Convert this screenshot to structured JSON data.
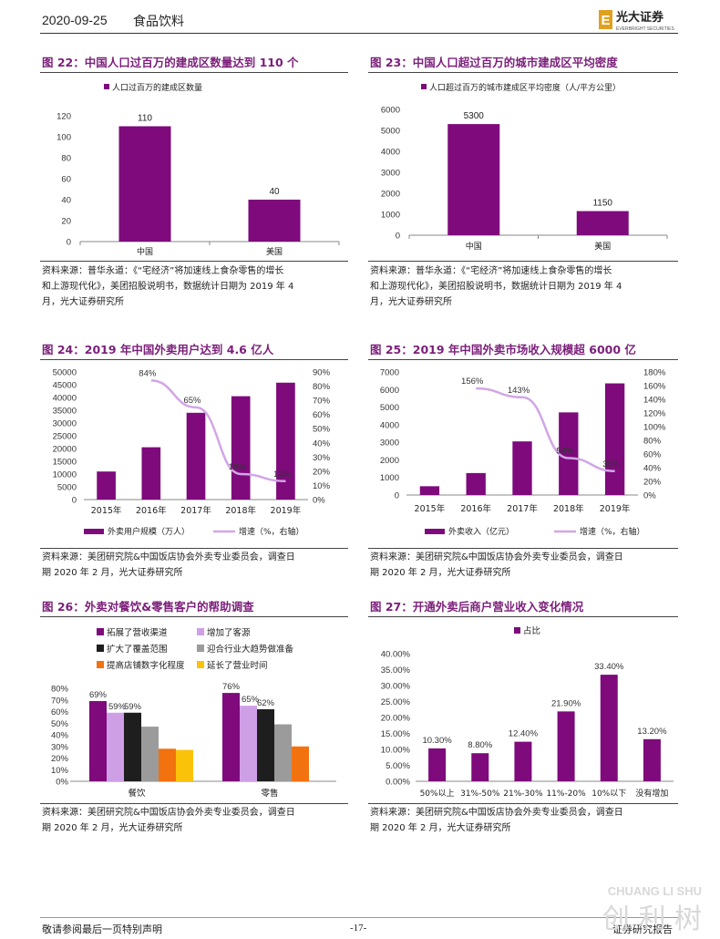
{
  "header": {
    "date": "2020-09-25",
    "category": "食品饮料",
    "logo_cn": "光大证券",
    "logo_en": "EVERBRIGHT SECURITIES",
    "logo_letter": "E"
  },
  "figures": [
    {
      "id": "fig22",
      "title": "图 22：中国人口过百万的建成区数量达到 110 个",
      "source": [
        "资料来源：普华永道：《“宅经济”将加速线上食杂零售的增长",
        "和上游现代化》，美团招股说明书，数据统计日期为 2019 年 4",
        "月，光大证券研究所"
      ],
      "chart_data": {
        "type": "bar",
        "categories": [
          "中国",
          "美国"
        ],
        "series": [
          {
            "name": "人口过百万的建成区数量",
            "values": [
              110,
              40
            ]
          }
        ],
        "data_labels": [
          "110",
          "40"
        ],
        "ylim": [
          0,
          120
        ],
        "yticks": [
          "0",
          "20",
          "40",
          "60",
          "80",
          "100",
          "120"
        ],
        "legend": "top"
      }
    },
    {
      "id": "fig23",
      "title": "图 23：中国人口超过百万的城市建成区平均密度",
      "source": [
        "资料来源：普华永道：《“宅经济”将加速线上食杂零售的增长",
        "和上游现代化》，美团招股说明书，数据统计日期为 2019 年 4",
        "月，光大证券研究所"
      ],
      "chart_data": {
        "type": "bar",
        "categories": [
          "中国",
          "美国"
        ],
        "series": [
          {
            "name": "人口超过百万的城市建成区平均密度（人/平方公里）",
            "values": [
              5300,
              1150
            ]
          }
        ],
        "data_labels": [
          "5300",
          "1150"
        ],
        "ylim": [
          0,
          6000
        ],
        "yticks": [
          "0",
          "1000",
          "2000",
          "3000",
          "4000",
          "5000",
          "6000"
        ],
        "legend": "top"
      }
    },
    {
      "id": "fig24",
      "title": "图 24：2019 年中国外卖用户达到 4.6 亿人",
      "source": [
        "资料来源：美团研究院&中国饭店协会外卖专业委员会，调查日",
        "期 2020 年 2 月，光大证券研究所"
      ],
      "chart_data": {
        "type": "bar+line",
        "categories": [
          "2015年",
          "2016年",
          "2017年",
          "2018年",
          "2019年"
        ],
        "series": [
          {
            "name": "外卖用户规模（万人）",
            "type": "bar",
            "values": [
              11000,
              20500,
              34000,
              40500,
              45800
            ]
          },
          {
            "name": "增速（%，右轴）",
            "type": "line",
            "values": [
              null,
              84,
              65,
              18,
              13
            ]
          }
        ],
        "line_labels": [
          "",
          "84%",
          "65%",
          "18%",
          "13%"
        ],
        "ylim": [
          0,
          50000
        ],
        "yticks": [
          "0",
          "5000",
          "10000",
          "15000",
          "20000",
          "25000",
          "30000",
          "35000",
          "40000",
          "45000",
          "50000"
        ],
        "y2lim": [
          0,
          90
        ],
        "y2ticks": [
          "0%",
          "10%",
          "20%",
          "30%",
          "40%",
          "50%",
          "60%",
          "70%",
          "80%",
          "90%"
        ],
        "legend": "bottom"
      }
    },
    {
      "id": "fig25",
      "title": "图 25：2019 年中国外卖市场收入规模超 6000 亿",
      "source": [
        "资料来源：美团研究院&中国饭店协会外卖专业委员会，调查日",
        "期 2020 年 2 月，光大证券研究所"
      ],
      "chart_data": {
        "type": "bar+line",
        "categories": [
          "2015年",
          "2016年",
          "2017年",
          "2018年",
          "2019年"
        ],
        "series": [
          {
            "name": "外卖收入（亿元）",
            "type": "bar",
            "values": [
              500,
              1250,
              3050,
              4700,
              6350
            ]
          },
          {
            "name": "增速（%，右轴）",
            "type": "line",
            "values": [
              null,
              156,
              143,
              54,
              35
            ]
          }
        ],
        "line_labels": [
          "",
          "156%",
          "143%",
          "54%",
          "35%"
        ],
        "ylim": [
          0,
          7000
        ],
        "yticks": [
          "0",
          "1000",
          "2000",
          "3000",
          "4000",
          "5000",
          "6000",
          "7000"
        ],
        "y2lim": [
          0,
          180
        ],
        "y2ticks": [
          "0%",
          "20%",
          "40%",
          "60%",
          "80%",
          "100%",
          "120%",
          "140%",
          "160%",
          "180%"
        ],
        "legend": "bottom"
      }
    },
    {
      "id": "fig26",
      "title": "图 26：外卖对餐饮&零售客户的帮助调查",
      "source": [
        "资料来源：美团研究院&中国饭店协会外卖专业委员会，调查日",
        "期 2020 年 2 月，光大证券研究所"
      ],
      "chart_data": {
        "type": "bar",
        "categories": [
          "餐饮",
          "零售"
        ],
        "series": [
          {
            "name": "拓展了营收渠道",
            "values": [
              69,
              76
            ],
            "color": "#7e0a7c",
            "labels": [
              "69%",
              "76%"
            ]
          },
          {
            "name": "增加了客源",
            "values": [
              59,
              65
            ],
            "color": "#cf9fe6",
            "labels": [
              "59%",
              "65%"
            ]
          },
          {
            "name": "扩大了覆盖范围",
            "values": [
              59,
              62
            ],
            "color": "#1e1e1e",
            "labels": [
              "59%",
              "62%"
            ]
          },
          {
            "name": "迎合行业大趋势做准备",
            "values": [
              47,
              49
            ],
            "color": "#9b9b9b",
            "labels": [
              "",
              ""
            ]
          },
          {
            "name": "提高店铺数字化程度",
            "values": [
              28,
              30
            ],
            "color": "#f2720f",
            "labels": [
              "",
              ""
            ]
          },
          {
            "name": "延长了营业时间",
            "values": [
              27,
              0
            ],
            "color": "#fbc20a",
            "labels": [
              "",
              ""
            ]
          }
        ],
        "ylim": [
          0,
          80
        ],
        "yticks": [
          "0%",
          "10%",
          "20%",
          "30%",
          "40%",
          "50%",
          "60%",
          "70%",
          "80%"
        ],
        "legend": "top"
      }
    },
    {
      "id": "fig27",
      "title": "图 27：开通外卖后商户营业收入变化情况",
      "source": [
        "资料来源：美团研究院&中国饭店协会外卖专业委员会，调查日",
        "期 2020 年 2 月，光大证券研究所"
      ],
      "chart_data": {
        "type": "bar",
        "categories": [
          "50%以上",
          "31%-50%",
          "21%-30%",
          "11%-20%",
          "10%以下",
          "没有增加"
        ],
        "series": [
          {
            "name": "占比",
            "values": [
              10.3,
              8.8,
              12.4,
              21.9,
              33.4,
              13.2
            ]
          }
        ],
        "data_labels": [
          "10.30%",
          "8.80%",
          "12.40%",
          "21.90%",
          "33.40%",
          "13.20%"
        ],
        "ylim": [
          0,
          40
        ],
        "yticks": [
          "0.00%",
          "5.00%",
          "10.00%",
          "15.00%",
          "20.00%",
          "25.00%",
          "30.00%",
          "35.00%",
          "40.00%"
        ],
        "legend": "top"
      }
    }
  ],
  "footer": {
    "left": "敬请参阅最后一页特别声明",
    "page": "-17-",
    "right": "证券研究报告"
  },
  "watermark": {
    "en": "CHUANG LI SHU",
    "cn": "创 利 树"
  },
  "colors": {
    "bar": "#7e0a7c",
    "line": "#d2a6e6",
    "title": "#7b1f7a"
  }
}
